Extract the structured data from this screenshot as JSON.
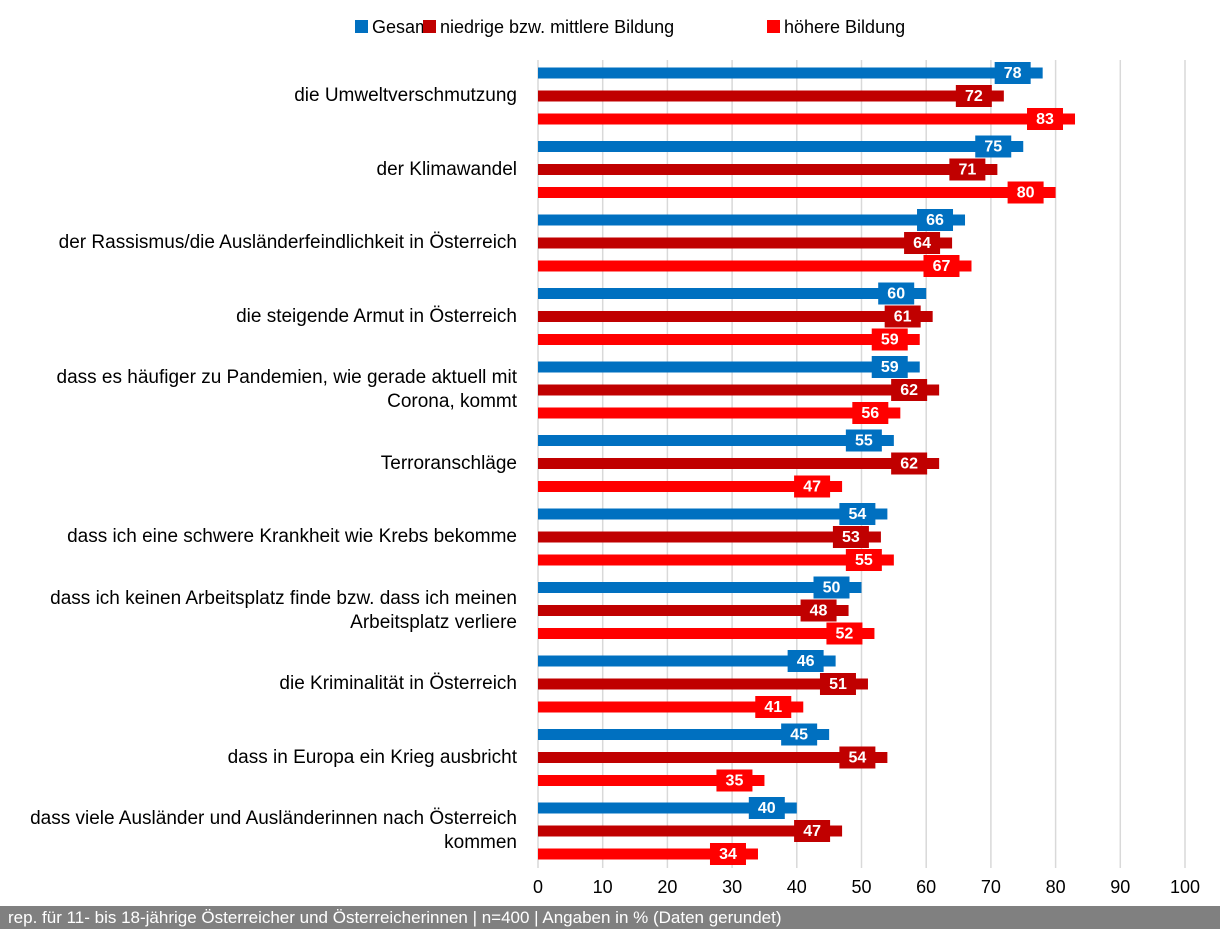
{
  "chart_data": {
    "type": "barh",
    "categories": [
      "die Umweltverschmutzung",
      "der Klimawandel",
      "der Rassismus/die Ausländerfeindlichkeit in Österreich",
      "die steigende Armut in Österreich",
      "dass es häufiger zu Pandemien, wie gerade aktuell mit Corona, kommt",
      "Terroranschläge",
      "dass ich eine schwere Krankheit wie Krebs bekomme",
      "dass ich keinen Arbeitsplatz finde bzw. dass ich meinen Arbeitsplatz verliere",
      "die Kriminalität in Österreich",
      "dass in Europa ein Krieg ausbricht",
      "dass viele Ausländer und Ausländerinnen nach Österreich kommen"
    ],
    "series": [
      {
        "name": "Gesamt",
        "color": "#0070c0",
        "values": [
          78,
          75,
          66,
          60,
          59,
          55,
          54,
          50,
          46,
          45,
          40
        ]
      },
      {
        "name": "niedrige bzw. mittlere Bildung",
        "color": "#c00000",
        "values": [
          72,
          71,
          64,
          61,
          62,
          62,
          53,
          48,
          51,
          54,
          47
        ]
      },
      {
        "name": "höhere Bildung",
        "color": "#ff0000",
        "values": [
          83,
          80,
          67,
          59,
          56,
          47,
          55,
          52,
          41,
          35,
          34
        ]
      }
    ],
    "xlim": [
      0,
      100
    ],
    "xticks": [
      0,
      10,
      20,
      30,
      40,
      50,
      60,
      70,
      80,
      90,
      100
    ],
    "grid": true,
    "legend": "top",
    "footnote": "rep. für 11- bis 18-jährige Österreicher und Österreicherinnen | n=400 | Angaben in % (Daten gerundet)"
  }
}
